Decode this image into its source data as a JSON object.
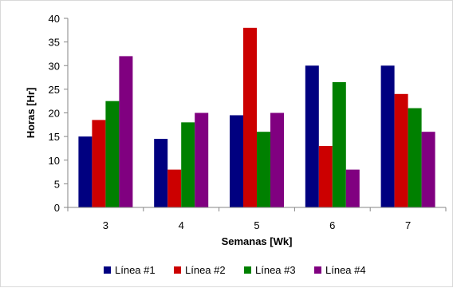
{
  "chart_data": {
    "type": "bar",
    "title": "",
    "xlabel": "Semanas [Wk]",
    "ylabel": "Horas [Hr]",
    "categories": [
      "3",
      "4",
      "5",
      "6",
      "7"
    ],
    "ylim": [
      0,
      40
    ],
    "yticks": [
      "0",
      "5",
      "10",
      "15",
      "20",
      "25",
      "30",
      "35",
      "40"
    ],
    "grid": false,
    "legend_position": "bottom",
    "series": [
      {
        "name": "Línea #1",
        "color": "#000080",
        "values": [
          15,
          14.5,
          19.5,
          30,
          30
        ]
      },
      {
        "name": "Línea #2",
        "color": "#cc0000",
        "values": [
          18.5,
          8,
          38,
          13,
          24
        ]
      },
      {
        "name": "Línea #3",
        "color": "#008000",
        "values": [
          22.5,
          18,
          16,
          26.5,
          21
        ]
      },
      {
        "name": "Línea #4",
        "color": "#800080",
        "values": [
          32,
          20,
          20,
          8,
          16
        ]
      }
    ]
  }
}
